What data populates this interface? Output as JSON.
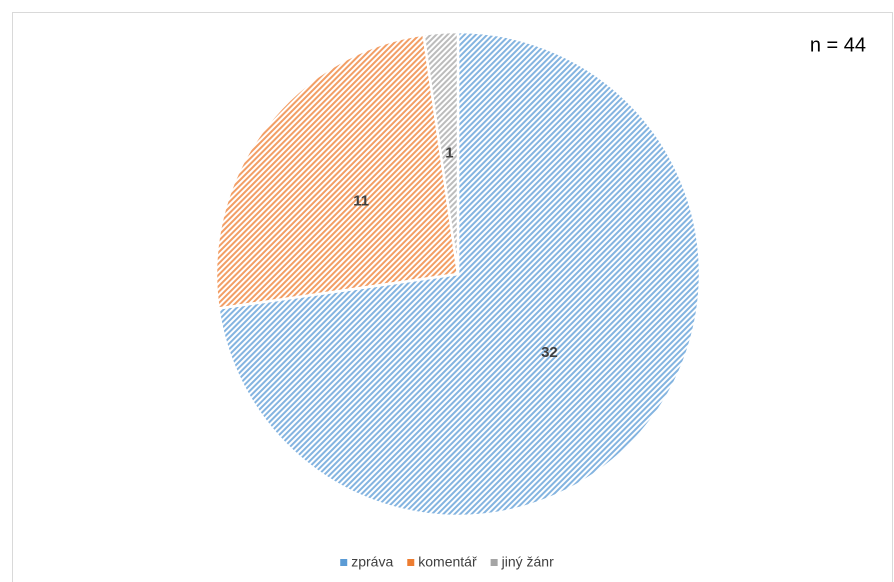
{
  "chart_data": {
    "type": "pie",
    "annotation": "n = 44",
    "categories": [
      "zpráva",
      "komentář",
      "jiný žánr"
    ],
    "values": [
      32,
      11,
      1
    ],
    "colors": [
      "#5b9bd5",
      "#ed7d31",
      "#a5a5a5"
    ],
    "legend": "bottom"
  }
}
